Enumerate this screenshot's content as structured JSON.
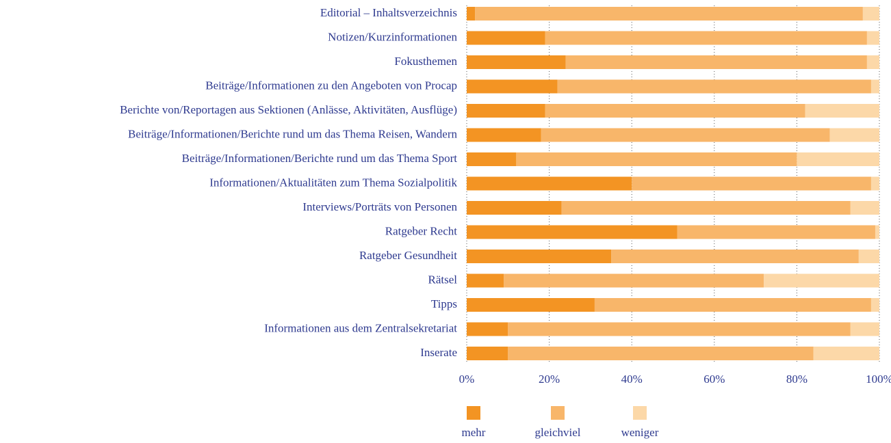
{
  "chart_data": {
    "type": "bar",
    "orientation": "horizontal",
    "stacked": true,
    "categories": [
      "Editorial – Inhaltsverzeichnis",
      "Notizen/Kurzinformationen",
      "Fokusthemen",
      "Beiträge/Informationen zu den Angeboten von Procap",
      "Berichte von/Reportagen aus Sektionen (Anlässe, Aktivitäten, Ausflüge)",
      "Beiträge/Informationen/Berichte rund um das Thema Reisen, Wandern",
      "Beiträge/Informationen/Berichte rund um das Thema Sport",
      "Informationen/Aktualitäten zum Thema Sozialpolitik",
      "Interviews/Porträts von Personen",
      "Ratgeber Recht",
      "Ratgeber Gesundheit",
      "Rätsel",
      "Tipps",
      "Informationen aus dem Zentralsekretariat",
      "Inserate"
    ],
    "series": [
      {
        "name": "mehr",
        "color": "#f39423",
        "values": [
          2,
          19,
          24,
          22,
          19,
          18,
          12,
          40,
          23,
          51,
          35,
          9,
          31,
          10,
          10
        ]
      },
      {
        "name": "gleichviel",
        "color": "#f8b66a",
        "values": [
          94,
          78,
          73,
          76,
          63,
          70,
          68,
          58,
          70,
          48,
          60,
          63,
          67,
          83,
          74
        ]
      },
      {
        "name": "weniger",
        "color": "#fcd8a8",
        "values": [
          4,
          3,
          3,
          2,
          18,
          12,
          20,
          2,
          7,
          1,
          5,
          28,
          2,
          7,
          16
        ]
      }
    ],
    "xlim": [
      0,
      100
    ],
    "xticks": [
      {
        "value": 0,
        "label": "0%"
      },
      {
        "value": 20,
        "label": "20%"
      },
      {
        "value": 40,
        "label": "40%"
      },
      {
        "value": 60,
        "label": "60%"
      },
      {
        "value": 80,
        "label": "80%"
      },
      {
        "value": 100,
        "label": "100%"
      }
    ],
    "grid": true,
    "legend": "bottom"
  }
}
